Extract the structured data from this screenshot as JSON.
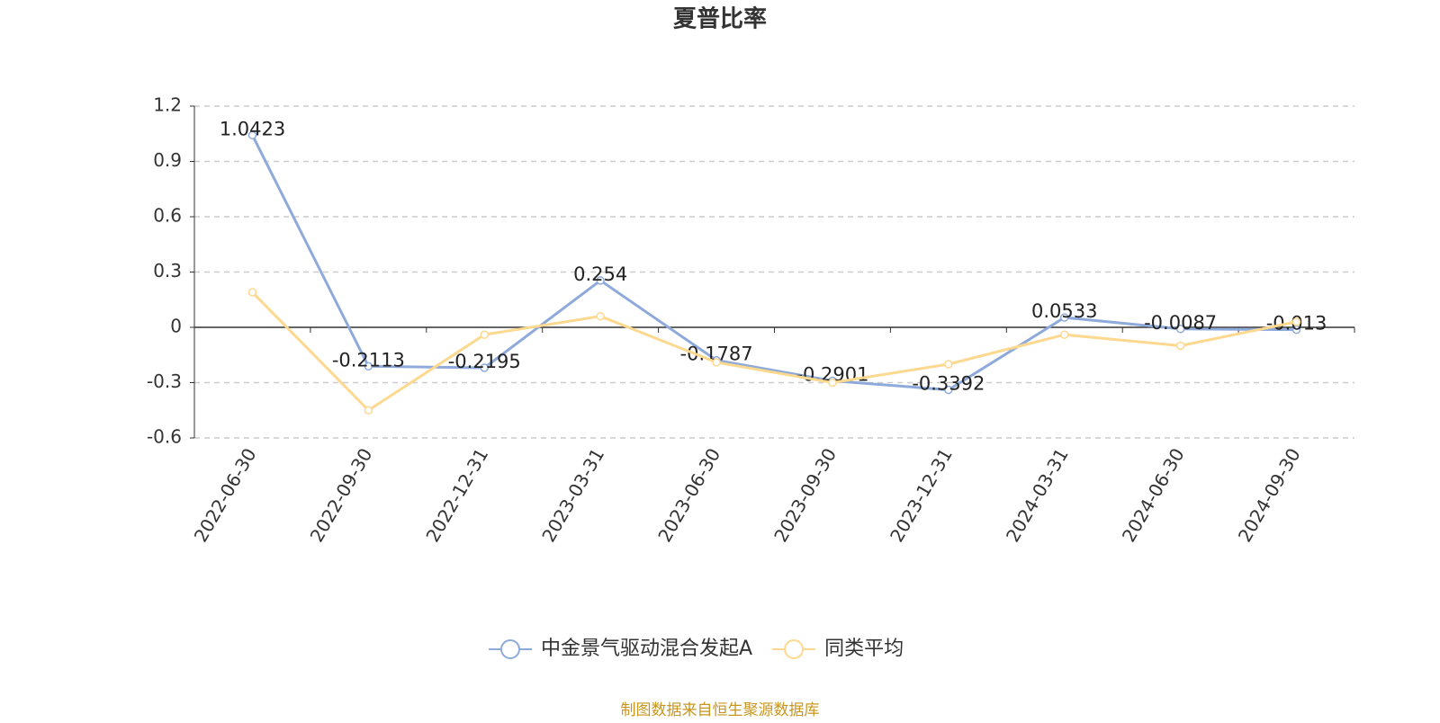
{
  "chart_data": {
    "type": "line",
    "title": "夏普比率",
    "categories": [
      "2022-06-30",
      "2022-09-30",
      "2022-12-31",
      "2023-03-31",
      "2023-06-30",
      "2023-09-30",
      "2023-12-31",
      "2024-03-31",
      "2024-06-30",
      "2024-09-30"
    ],
    "series": [
      {
        "name": "中金景气驱动混合发起A",
        "color": "#8eaadb",
        "values": [
          1.0423,
          -0.2113,
          -0.2195,
          0.254,
          -0.1787,
          -0.2901,
          -0.3392,
          0.0533,
          -0.0087,
          -0.013
        ],
        "show_labels": true
      },
      {
        "name": "同类平均",
        "color": "#fdd88f",
        "values": [
          0.19,
          -0.45,
          -0.04,
          0.06,
          -0.19,
          -0.3,
          -0.2,
          -0.04,
          -0.1,
          0.03
        ],
        "show_labels": false
      }
    ],
    "ylim": [
      -0.6,
      1.2
    ],
    "yticks": [
      -0.6,
      -0.3,
      0,
      0.3,
      0.6,
      0.9,
      1.2
    ],
    "grid": true,
    "legend": "bottom",
    "source": "制图数据来自恒生聚源数据库"
  }
}
